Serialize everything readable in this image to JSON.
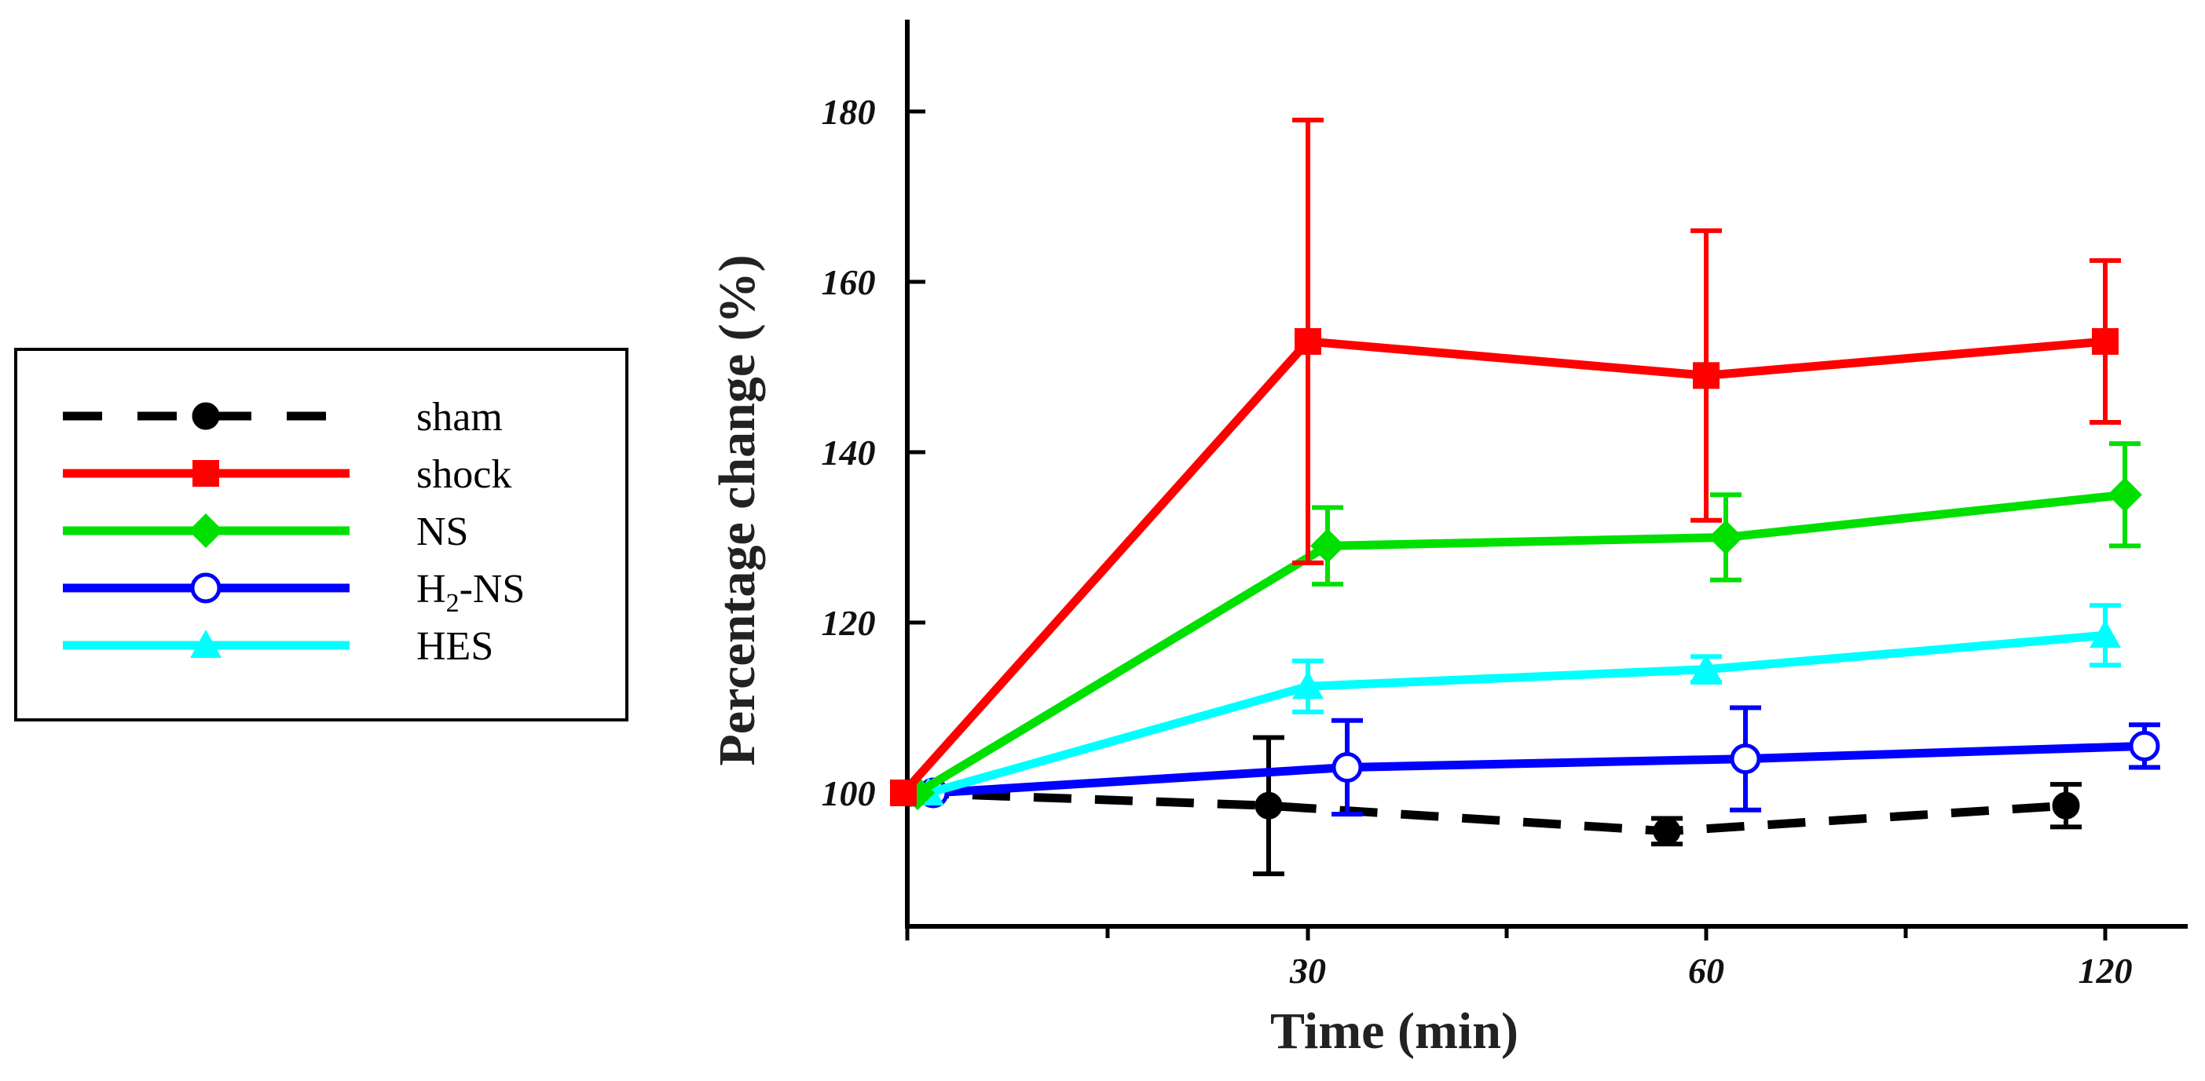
{
  "chart_data": {
    "type": "line",
    "title": "",
    "xlabel": "Time (min)",
    "ylabel": "Percentage change (%)",
    "x_categories": [
      "0",
      "30",
      "60",
      "120"
    ],
    "x_tick_labels": [
      "30",
      "60",
      "120"
    ],
    "y_ticks": [
      100,
      120,
      140,
      160,
      180
    ],
    "ylim": [
      85,
      190
    ],
    "grid": false,
    "legend_position": "left",
    "series": [
      {
        "name": "sham",
        "color": "#000000",
        "marker": "circle-filled",
        "linestyle": "dashed",
        "x": [
          0,
          30,
          60,
          120
        ],
        "values": [
          100,
          98.5,
          95.5,
          98.5
        ],
        "error": [
          0,
          8,
          1.5,
          2.5
        ]
      },
      {
        "name": "shock",
        "color": "#ff0000",
        "marker": "square",
        "linestyle": "solid",
        "x": [
          0,
          30,
          60,
          120
        ],
        "values": [
          100,
          153,
          149,
          153
        ],
        "error": [
          0,
          26,
          17,
          9.5
        ]
      },
      {
        "name": "NS",
        "color": "#00e000",
        "marker": "diamond",
        "linestyle": "solid",
        "x": [
          0,
          30,
          60,
          120
        ],
        "values": [
          100,
          129,
          130,
          135
        ],
        "error": [
          0,
          4.5,
          5,
          6
        ]
      },
      {
        "name": "H₂-NS",
        "label_main": "H",
        "label_sub": "2",
        "label_rest": "-NS",
        "color": "#0000ff",
        "marker": "circle-open",
        "linestyle": "solid",
        "x": [
          0,
          30,
          60,
          120
        ],
        "values": [
          100,
          103,
          104,
          105.5
        ],
        "error": [
          0,
          5.5,
          6,
          2.5
        ]
      },
      {
        "name": "HES",
        "color": "#00ffff",
        "marker": "triangle",
        "linestyle": "solid",
        "x": [
          0,
          30,
          60,
          120
        ],
        "values": [
          100,
          112.5,
          114.5,
          118.5
        ],
        "error": [
          0,
          3,
          1.5,
          3.5
        ]
      }
    ]
  }
}
